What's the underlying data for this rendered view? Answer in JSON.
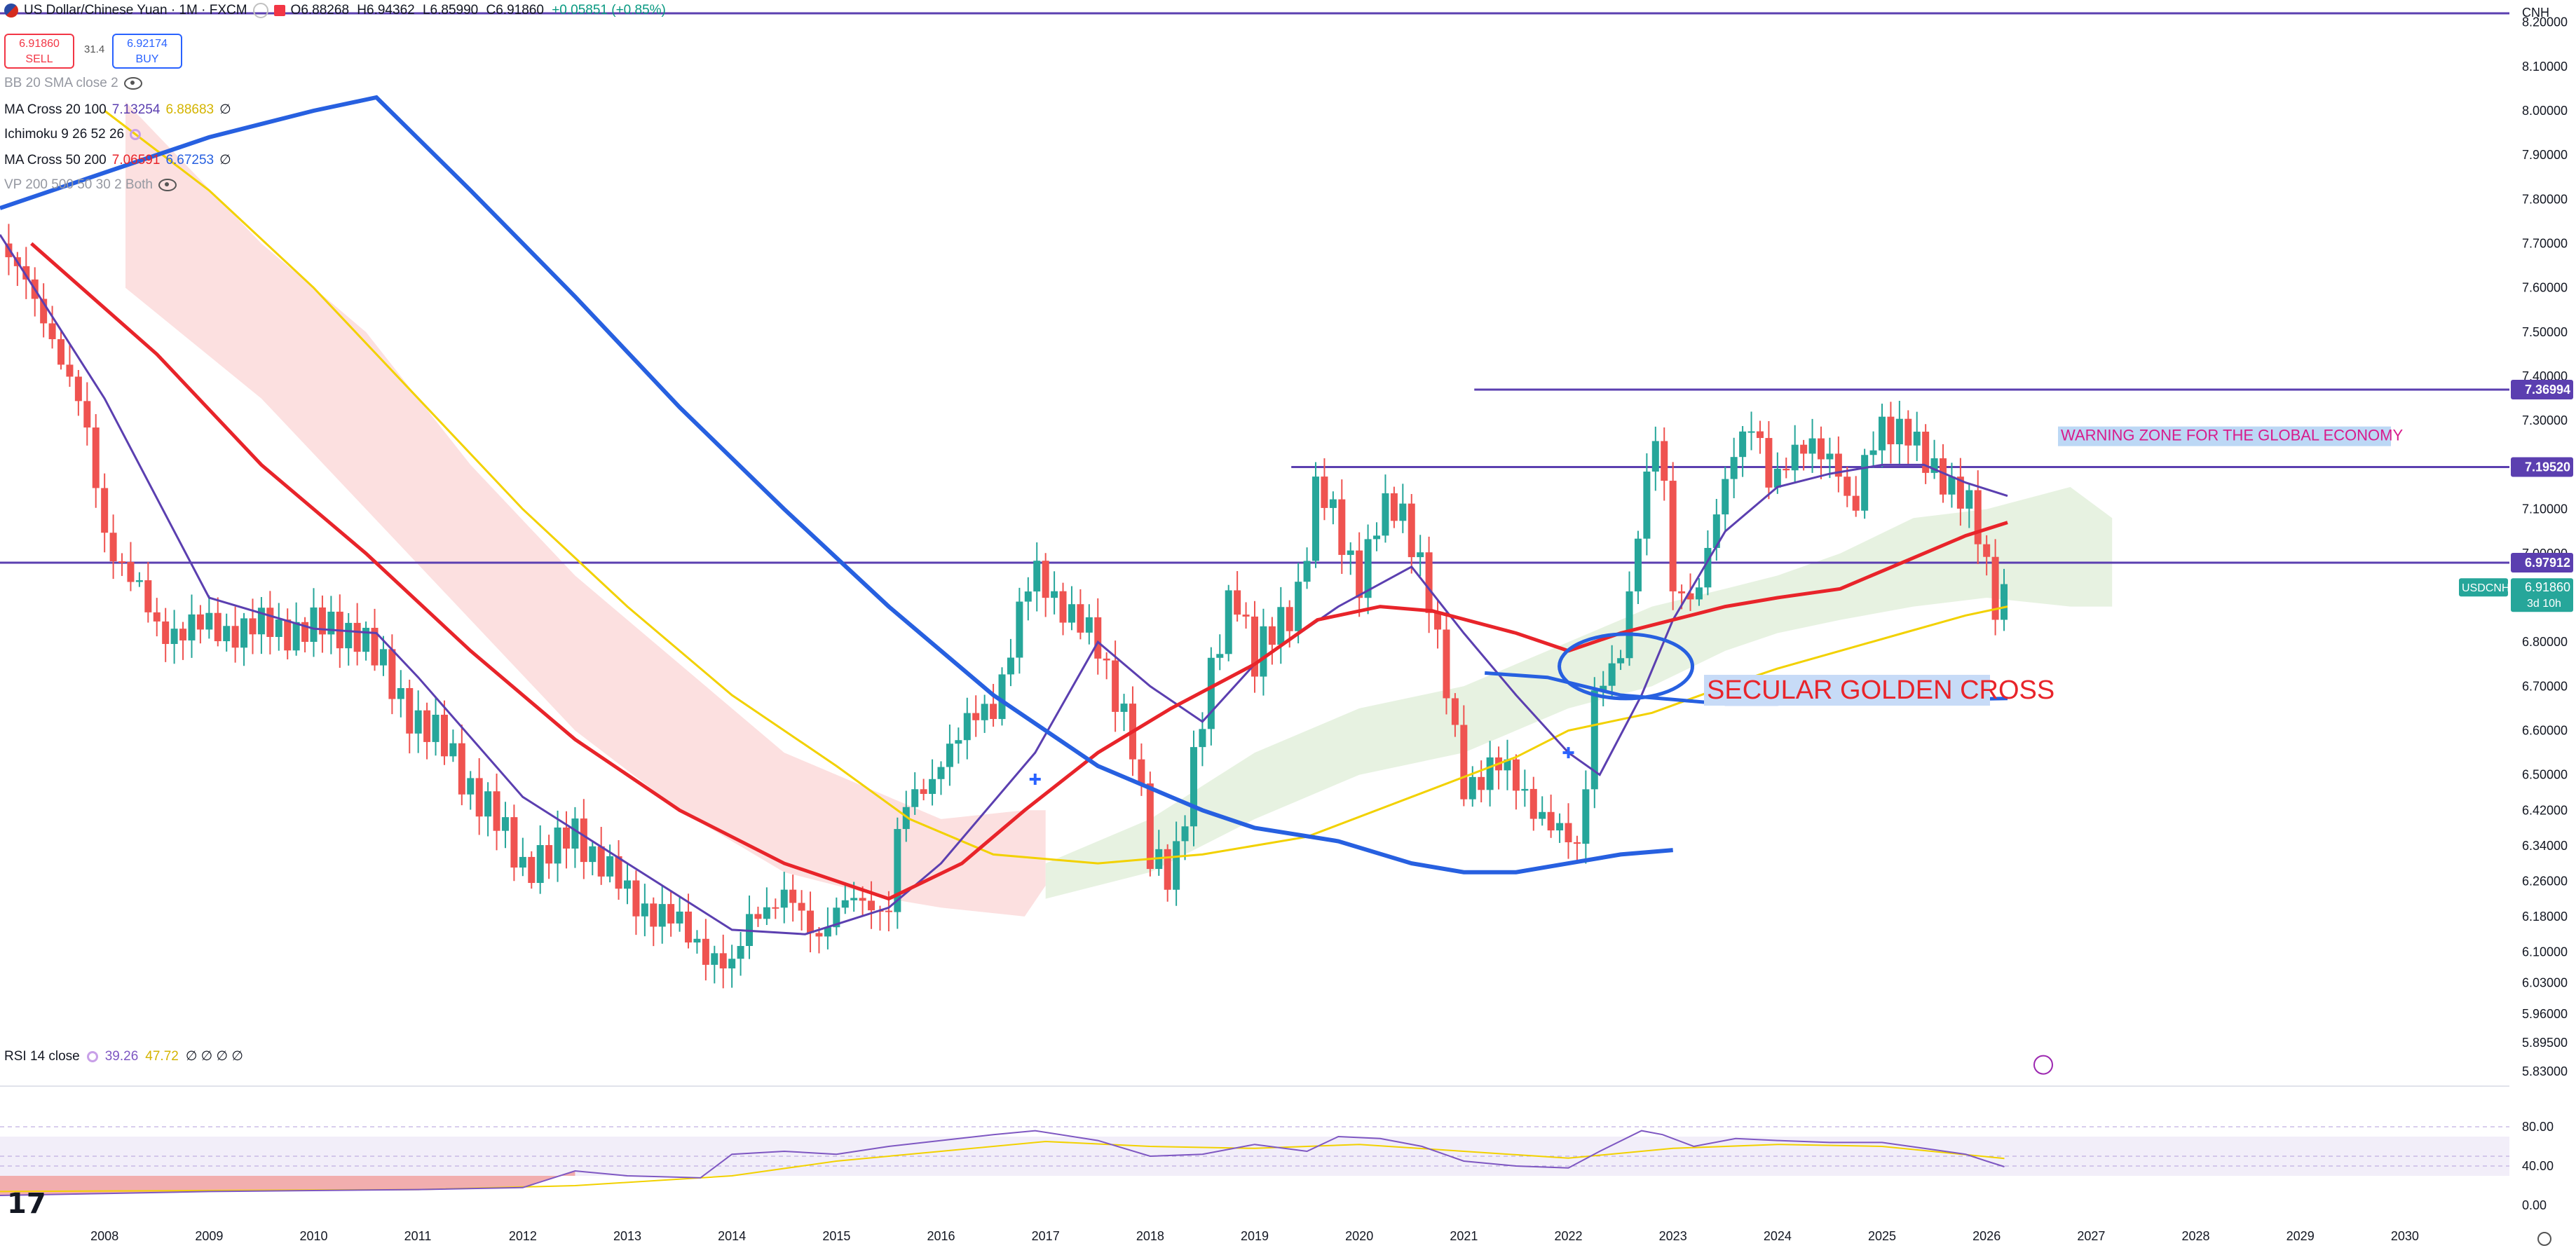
{
  "header": {
    "symbol_title": "US Dollar/Chinese Yuan · 1M · FXCM",
    "ohlc": {
      "open": "O6.88268",
      "high": "H6.94362",
      "low": "L6.85990",
      "close": "C6.91860",
      "change": "+0.05851 (+0.85%)"
    },
    "sell": {
      "price": "6.91860",
      "label": "SELL"
    },
    "spread": "31.4",
    "buy": {
      "price": "6.92174",
      "label": "BUY"
    }
  },
  "indicators": [
    {
      "name": "BB 20 SMA close 2",
      "values": [],
      "hidden": true
    },
    {
      "name": "MA Cross 20 100",
      "values": [
        "7.13254",
        "6.88683",
        "∅"
      ]
    },
    {
      "name": "Ichimoku 9 26 52 26",
      "values": []
    },
    {
      "name": "MA Cross 50 200",
      "values": [
        "7.06591",
        "6.67253",
        "∅"
      ]
    },
    {
      "name": "VP 200 500 50 30 2 Both",
      "values": [],
      "hidden": true
    }
  ],
  "currency": "CNH",
  "annotations": {
    "warning": "WARNING ZONE FOR THE GLOBAL ECONOMY",
    "golden_cross": "SECULAR GOLDEN CROSS"
  },
  "rsi": {
    "label": "RSI 14 close",
    "value": "39.26",
    "ma": "47.72",
    "rest": "∅ ∅ ∅ ∅"
  },
  "colors": {
    "up": "#26a69a",
    "down": "#ef5350",
    "ma20": "#5b3fb0",
    "ma50": "#e8242a",
    "ma100": "#f2d100",
    "ma200": "#2760e0",
    "hline": "#5b3fb0",
    "cloud_bear": "#fbdada",
    "cloud_bull": "#e3f0dc"
  },
  "chart_data": {
    "type": "candlestick",
    "title": "US Dollar/Chinese Yuan · 1M · FXCM",
    "ylim": [
      5.8,
      8.25
    ],
    "xlim": [
      2007.0,
      2031.0
    ],
    "y_ticks": [
      "8.20000",
      "8.10000",
      "8.00000",
      "7.90000",
      "7.80000",
      "7.70000",
      "7.60000",
      "7.50000",
      "7.40000",
      "7.30000",
      "7.20000",
      "7.10000",
      "7.00000",
      "6.90000",
      "6.80000",
      "6.70000",
      "6.60000",
      "6.50000",
      "6.42000",
      "6.34000",
      "6.26000",
      "6.18000",
      "6.10000",
      "6.03000",
      "5.96000",
      "5.89500",
      "5.83000"
    ],
    "x_ticks": [
      "2008",
      "2009",
      "2010",
      "2011",
      "2012",
      "2013",
      "2014",
      "2015",
      "2016",
      "2017",
      "2018",
      "2019",
      "2020",
      "2021",
      "2022",
      "2023",
      "2024",
      "2025",
      "2026",
      "2027",
      "2028",
      "2029",
      "2030"
    ],
    "price_labels": [
      {
        "value": 7.36994,
        "text": "7.36994"
      },
      {
        "value": 7.1952,
        "text": "7.19520"
      },
      {
        "value": 6.97912,
        "text": "6.97912"
      },
      {
        "value": 6.9186,
        "text": "6.91860",
        "symbol": "USDCNH",
        "countdown": "3d 10h"
      }
    ],
    "horizontal_lines": [
      {
        "value": 8.22,
        "x_from": 2007.0
      },
      {
        "value": 7.36994,
        "x_from": 2021.1
      },
      {
        "value": 7.1952,
        "x_from": 2019.35
      },
      {
        "value": 6.97912,
        "x_from": 2007.0
      }
    ],
    "close_anchors": [
      [
        2007.0,
        7.7
      ],
      [
        2007.5,
        7.5
      ],
      [
        2007.8,
        7.3
      ],
      [
        2008.0,
        7.05
      ],
      [
        2008.3,
        6.92
      ],
      [
        2008.5,
        6.83
      ],
      [
        2009.0,
        6.83
      ],
      [
        2009.5,
        6.83
      ],
      [
        2010.0,
        6.83
      ],
      [
        2010.4,
        6.83
      ],
      [
        2010.7,
        6.72
      ],
      [
        2011.0,
        6.62
      ],
      [
        2011.3,
        6.55
      ],
      [
        2011.6,
        6.44
      ],
      [
        2012.0,
        6.3
      ],
      [
        2012.3,
        6.32
      ],
      [
        2012.5,
        6.38
      ],
      [
        2012.8,
        6.28
      ],
      [
        2013.0,
        6.23
      ],
      [
        2013.4,
        6.17
      ],
      [
        2013.7,
        6.12
      ],
      [
        2014.0,
        6.05
      ],
      [
        2014.2,
        6.2
      ],
      [
        2014.5,
        6.22
      ],
      [
        2014.8,
        6.14
      ],
      [
        2015.0,
        6.2
      ],
      [
        2015.5,
        6.21
      ],
      [
        2015.6,
        6.4
      ],
      [
        2015.9,
        6.48
      ],
      [
        2016.0,
        6.55
      ],
      [
        2016.5,
        6.66
      ],
      [
        2016.8,
        6.9
      ],
      [
        2016.9,
        6.95
      ],
      [
        2017.2,
        6.88
      ],
      [
        2017.5,
        6.78
      ],
      [
        2017.8,
        6.62
      ],
      [
        2018.0,
        6.3
      ],
      [
        2018.2,
        6.28
      ],
      [
        2018.5,
        6.62
      ],
      [
        2018.8,
        6.95
      ],
      [
        2019.0,
        6.75
      ],
      [
        2019.4,
        6.9
      ],
      [
        2019.6,
        7.15
      ],
      [
        2019.9,
        7.0
      ],
      [
        2020.0,
        6.95
      ],
      [
        2020.2,
        7.08
      ],
      [
        2020.4,
        7.1
      ],
      [
        2020.6,
        6.98
      ],
      [
        2020.8,
        6.72
      ],
      [
        2021.0,
        6.48
      ],
      [
        2021.3,
        6.52
      ],
      [
        2021.6,
        6.46
      ],
      [
        2021.9,
        6.36
      ],
      [
        2022.1,
        6.33
      ],
      [
        2022.25,
        6.7
      ],
      [
        2022.5,
        6.75
      ],
      [
        2022.7,
        7.1
      ],
      [
        2022.8,
        7.3
      ],
      [
        2022.9,
        7.22
      ],
      [
        2023.0,
        6.9
      ],
      [
        2023.2,
        6.88
      ],
      [
        2023.4,
        7.1
      ],
      [
        2023.6,
        7.22
      ],
      [
        2023.8,
        7.3
      ],
      [
        2023.9,
        7.18
      ],
      [
        2024.1,
        7.2
      ],
      [
        2024.4,
        7.25
      ],
      [
        2024.6,
        7.2
      ],
      [
        2024.7,
        7.05
      ],
      [
        2024.9,
        7.25
      ],
      [
        2025.0,
        7.3
      ],
      [
        2025.2,
        7.28
      ],
      [
        2025.4,
        7.2
      ],
      [
        2025.6,
        7.18
      ],
      [
        2025.8,
        7.12
      ],
      [
        2025.9,
        7.05
      ],
      [
        2026.0,
        6.95
      ],
      [
        2026.1,
        6.88
      ],
      [
        2026.17,
        6.9186
      ]
    ],
    "ma_20": [
      [
        2007.0,
        7.72
      ],
      [
        2008.0,
        7.35
      ],
      [
        2009.0,
        6.9
      ],
      [
        2010.0,
        6.83
      ],
      [
        2010.6,
        6.82
      ],
      [
        2011.0,
        6.72
      ],
      [
        2012.0,
        6.45
      ],
      [
        2013.0,
        6.3
      ],
      [
        2014.0,
        6.15
      ],
      [
        2014.7,
        6.14
      ],
      [
        2015.5,
        6.2
      ],
      [
        2016.0,
        6.3
      ],
      [
        2016.9,
        6.55
      ],
      [
        2017.5,
        6.8
      ],
      [
        2018.0,
        6.7
      ],
      [
        2018.5,
        6.62
      ],
      [
        2019.0,
        6.75
      ],
      [
        2019.8,
        6.88
      ],
      [
        2020.5,
        6.97
      ],
      [
        2021.0,
        6.82
      ],
      [
        2021.5,
        6.68
      ],
      [
        2022.0,
        6.55
      ],
      [
        2022.3,
        6.5
      ],
      [
        2022.7,
        6.68
      ],
      [
        2023.0,
        6.85
      ],
      [
        2023.5,
        7.05
      ],
      [
        2024.0,
        7.15
      ],
      [
        2024.5,
        7.18
      ],
      [
        2025.0,
        7.2
      ],
      [
        2025.4,
        7.2
      ],
      [
        2025.8,
        7.16
      ],
      [
        2026.2,
        7.13
      ]
    ],
    "ma_50": [
      [
        2007.3,
        7.7
      ],
      [
        2008.5,
        7.45
      ],
      [
        2009.5,
        7.2
      ],
      [
        2010.5,
        7.0
      ],
      [
        2011.5,
        6.78
      ],
      [
        2012.5,
        6.58
      ],
      [
        2013.5,
        6.42
      ],
      [
        2014.5,
        6.3
      ],
      [
        2015.5,
        6.22
      ],
      [
        2016.2,
        6.3
      ],
      [
        2016.8,
        6.42
      ],
      [
        2017.5,
        6.55
      ],
      [
        2018.2,
        6.65
      ],
      [
        2019.0,
        6.75
      ],
      [
        2019.6,
        6.85
      ],
      [
        2020.2,
        6.88
      ],
      [
        2020.7,
        6.87
      ],
      [
        2021.5,
        6.82
      ],
      [
        2022.0,
        6.78
      ],
      [
        2022.5,
        6.82
      ],
      [
        2023.0,
        6.85
      ],
      [
        2023.5,
        6.88
      ],
      [
        2024.0,
        6.9
      ],
      [
        2024.6,
        6.92
      ],
      [
        2025.2,
        6.98
      ],
      [
        2025.8,
        7.04
      ],
      [
        2026.2,
        7.07
      ]
    ],
    "ma_100": [
      [
        2008.0,
        8.0
      ],
      [
        2009.0,
        7.82
      ],
      [
        2010.0,
        7.6
      ],
      [
        2011.0,
        7.35
      ],
      [
        2012.0,
        7.1
      ],
      [
        2013.0,
        6.88
      ],
      [
        2014.0,
        6.68
      ],
      [
        2015.0,
        6.52
      ],
      [
        2015.7,
        6.4
      ],
      [
        2016.5,
        6.32
      ],
      [
        2017.5,
        6.3
      ],
      [
        2018.5,
        6.32
      ],
      [
        2019.5,
        6.36
      ],
      [
        2020.5,
        6.45
      ],
      [
        2021.5,
        6.54
      ],
      [
        2022.0,
        6.6
      ],
      [
        2022.8,
        6.64
      ],
      [
        2023.5,
        6.7
      ],
      [
        2024.0,
        6.74
      ],
      [
        2024.6,
        6.78
      ],
      [
        2025.2,
        6.82
      ],
      [
        2025.8,
        6.86
      ],
      [
        2026.2,
        6.88
      ]
    ],
    "ma_200": [
      [
        2007.0,
        7.78
      ],
      [
        2008.0,
        7.86
      ],
      [
        2009.0,
        7.94
      ],
      [
        2010.0,
        8.0
      ],
      [
        2010.6,
        8.03
      ],
      [
        2011.5,
        7.82
      ],
      [
        2012.5,
        7.58
      ],
      [
        2013.5,
        7.33
      ],
      [
        2014.5,
        7.1
      ],
      [
        2015.5,
        6.88
      ],
      [
        2016.5,
        6.68
      ],
      [
        2017.5,
        6.52
      ],
      [
        2018.5,
        6.42
      ],
      [
        2019.0,
        6.38
      ],
      [
        2019.8,
        6.35
      ],
      [
        2020.5,
        6.3
      ],
      [
        2021.0,
        6.28
      ],
      [
        2021.5,
        6.28
      ],
      [
        2022.0,
        6.3
      ],
      [
        2022.5,
        6.32
      ],
      [
        2023.0,
        6.33
      ]
    ],
    "ma_200_extended": [
      [
        2021.2,
        6.73
      ],
      [
        2021.8,
        6.72
      ],
      [
        2022.5,
        6.68
      ],
      [
        2023.0,
        6.67
      ],
      [
        2023.5,
        6.66
      ],
      [
        2024.0,
        6.66
      ],
      [
        2024.5,
        6.665
      ],
      [
        2025.0,
        6.67
      ],
      [
        2025.6,
        6.67
      ],
      [
        2026.2,
        6.6725
      ]
    ],
    "cloud_bear": [
      [
        2008.2,
        8.02,
        7.6
      ],
      [
        2009.5,
        7.7,
        7.35
      ],
      [
        2010.5,
        7.5,
        7.1
      ],
      [
        2011.5,
        7.2,
        6.85
      ],
      [
        2012.5,
        6.95,
        6.6
      ],
      [
        2013.5,
        6.75,
        6.42
      ],
      [
        2014.5,
        6.55,
        6.28
      ],
      [
        2015.5,
        6.45,
        6.22
      ],
      [
        2016.0,
        6.4,
        6.2
      ],
      [
        2016.8,
        6.42,
        6.18
      ],
      [
        2017.0,
        6.42,
        6.25
      ]
    ],
    "cloud_bull": [
      [
        2017.0,
        6.3,
        6.22
      ],
      [
        2018.0,
        6.4,
        6.28
      ],
      [
        2019.0,
        6.55,
        6.4
      ],
      [
        2020.0,
        6.65,
        6.5
      ],
      [
        2021.0,
        6.7,
        6.55
      ],
      [
        2022.0,
        6.8,
        6.65
      ],
      [
        2022.8,
        6.88,
        6.7
      ],
      [
        2023.5,
        6.92,
        6.78
      ],
      [
        2024.0,
        6.95,
        6.82
      ],
      [
        2024.6,
        7.0,
        6.85
      ],
      [
        2025.3,
        7.08,
        6.88
      ],
      [
        2026.0,
        7.1,
        6.9
      ],
      [
        2026.8,
        7.15,
        6.88
      ],
      [
        2027.2,
        7.08,
        6.88
      ]
    ],
    "rsi": {
      "ylim": [
        0,
        100
      ],
      "y_ticks": [
        "80.00",
        "40.00",
        "0.00"
      ],
      "band": [
        30,
        70
      ],
      "latest": 39.26,
      "ma_latest": 47.72,
      "series": [
        [
          2007.0,
          10
        ],
        [
          2008.0,
          12
        ],
        [
          2009.0,
          14
        ],
        [
          2010.0,
          15
        ],
        [
          2011.0,
          16
        ],
        [
          2012.0,
          18
        ],
        [
          2012.5,
          35
        ],
        [
          2013.0,
          30
        ],
        [
          2013.7,
          28
        ],
        [
          2014.0,
          52
        ],
        [
          2014.5,
          55
        ],
        [
          2015.0,
          52
        ],
        [
          2015.5,
          60
        ],
        [
          2016.0,
          66
        ],
        [
          2016.5,
          72
        ],
        [
          2016.9,
          76
        ],
        [
          2017.5,
          66
        ],
        [
          2018.0,
          50
        ],
        [
          2018.5,
          52
        ],
        [
          2019.0,
          62
        ],
        [
          2019.5,
          55
        ],
        [
          2019.8,
          70
        ],
        [
          2020.2,
          68
        ],
        [
          2020.6,
          60
        ],
        [
          2021.0,
          45
        ],
        [
          2021.5,
          40
        ],
        [
          2022.0,
          38
        ],
        [
          2022.3,
          55
        ],
        [
          2022.7,
          76
        ],
        [
          2022.9,
          72
        ],
        [
          2023.2,
          60
        ],
        [
          2023.6,
          68
        ],
        [
          2024.0,
          66
        ],
        [
          2024.5,
          64
        ],
        [
          2025.0,
          64
        ],
        [
          2025.4,
          58
        ],
        [
          2025.8,
          52
        ],
        [
          2026.0,
          45
        ],
        [
          2026.17,
          39.26
        ]
      ],
      "ma": [
        [
          2007.0,
          14
        ],
        [
          2009.0,
          15
        ],
        [
          2011.0,
          16
        ],
        [
          2012.5,
          20
        ],
        [
          2014.0,
          30
        ],
        [
          2015.0,
          45
        ],
        [
          2016.0,
          55
        ],
        [
          2017.0,
          65
        ],
        [
          2018.0,
          60
        ],
        [
          2019.0,
          58
        ],
        [
          2020.0,
          62
        ],
        [
          2021.0,
          55
        ],
        [
          2022.0,
          48
        ],
        [
          2023.0,
          58
        ],
        [
          2024.0,
          62
        ],
        [
          2025.0,
          60
        ],
        [
          2026.17,
          47.72
        ]
      ]
    }
  }
}
